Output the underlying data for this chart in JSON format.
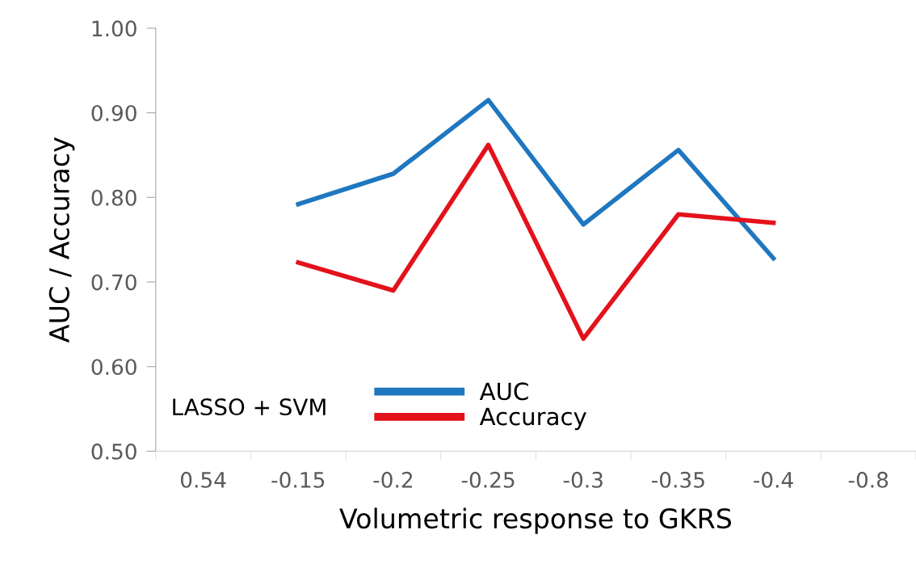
{
  "chart_data": {
    "type": "line",
    "xlabel": "Volumetric response to GKRS",
    "ylabel": "AUC / Accuracy",
    "categories": [
      "0.54",
      "-0.15",
      "-0.2",
      "-0.25",
      "-0.3",
      "-0.35",
      "-0.4",
      "-0.8"
    ],
    "series": [
      {
        "name": "AUC",
        "color": "#1f77c0",
        "values": [
          null,
          0.792,
          0.828,
          0.915,
          0.768,
          0.856,
          0.728,
          null
        ]
      },
      {
        "name": "Accuracy",
        "color": "#e3121b",
        "values": [
          null,
          0.723,
          0.69,
          0.862,
          0.633,
          0.78,
          0.77,
          null
        ]
      }
    ],
    "ylim": [
      0.5,
      1.0
    ],
    "yticks": [
      {
        "value": 0.5,
        "label": "0.50"
      },
      {
        "value": 0.6,
        "label": "0.60"
      },
      {
        "value": 0.7,
        "label": "0.70"
      },
      {
        "value": 0.8,
        "label": "0.80"
      },
      {
        "value": 0.9,
        "label": "0.90"
      },
      {
        "value": 1.0,
        "label": "1.00"
      }
    ],
    "grid": false,
    "legend": "bottom",
    "marker": "none",
    "line_style": "solid",
    "annotations": [
      "LASSO + SVM"
    ]
  }
}
